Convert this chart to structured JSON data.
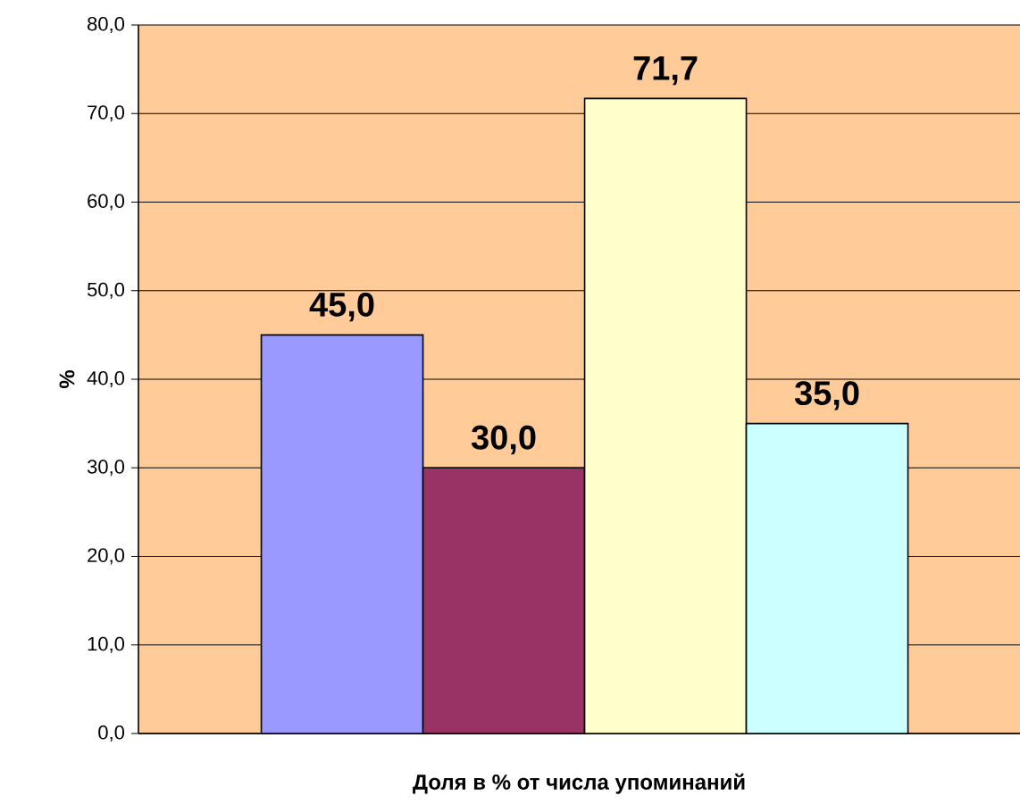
{
  "chart_data": {
    "type": "bar",
    "xlabel": "Доля в % от числа упоминаний",
    "ylabel": "%",
    "categories": [
      null,
      null,
      null,
      null
    ],
    "values": [
      45.0,
      30.0,
      71.7,
      35.0
    ],
    "colors": [
      "#9999ff",
      "#993366",
      "#ffffcc",
      "#ccffff"
    ],
    "value_labels": [
      "45,0",
      "30,0",
      "71,7",
      "35,0"
    ],
    "ylim": [
      0,
      80
    ],
    "yticks": [
      {
        "value": 0,
        "label": "0,0"
      },
      {
        "value": 10,
        "label": "10,0"
      },
      {
        "value": 20,
        "label": "20,0"
      },
      {
        "value": 30,
        "label": "30,0"
      },
      {
        "value": 40,
        "label": "40,0"
      },
      {
        "value": 50,
        "label": "50,0"
      },
      {
        "value": 60,
        "label": "60,0"
      },
      {
        "value": 70,
        "label": "70,0"
      },
      {
        "value": 80,
        "label": "80,0"
      }
    ],
    "grid": "y"
  }
}
